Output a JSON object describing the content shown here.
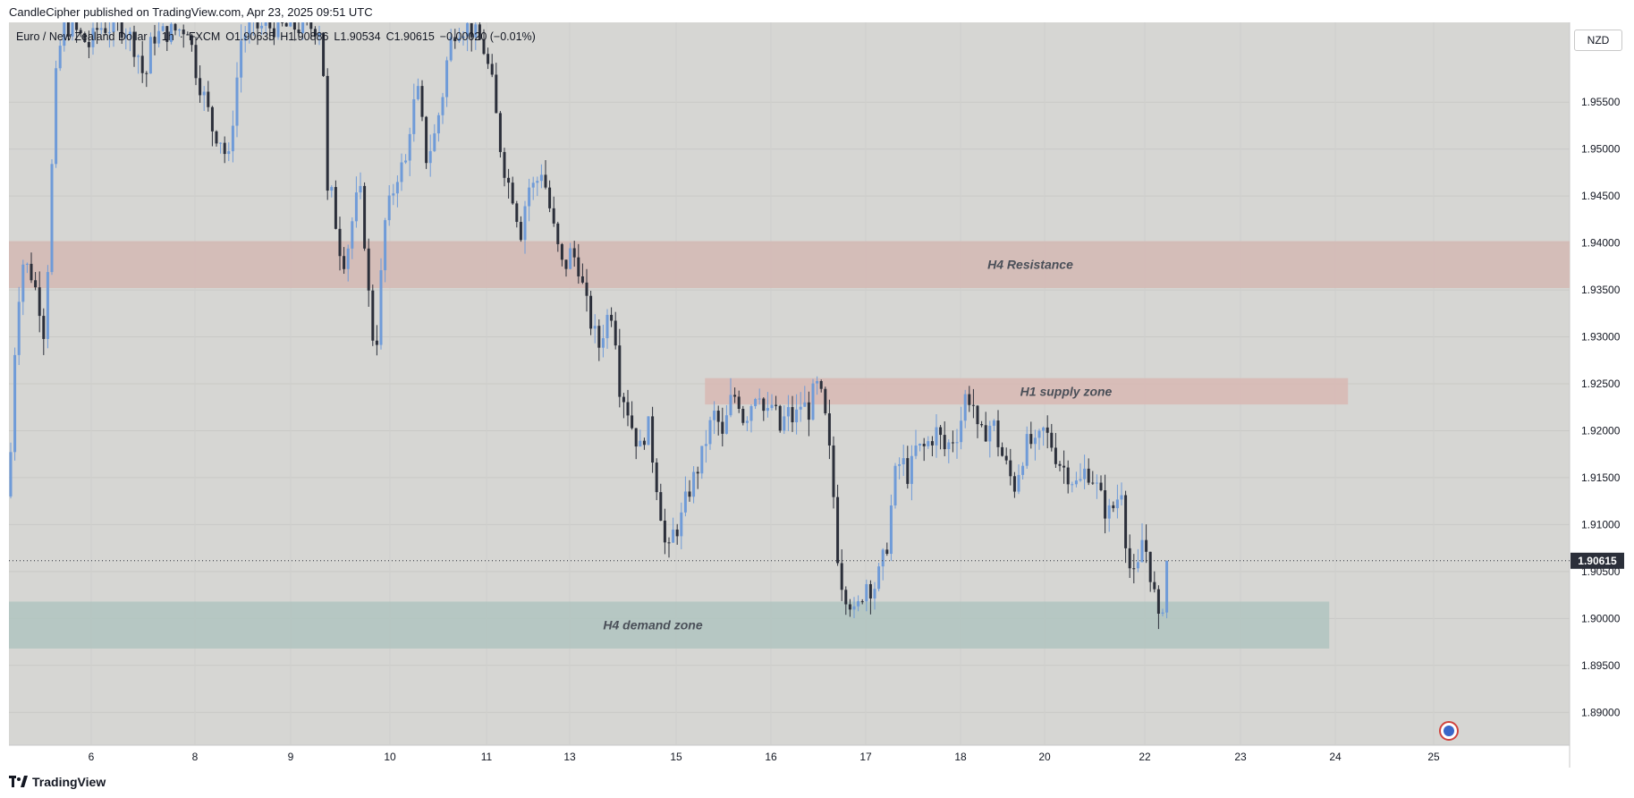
{
  "caption": "CandleCipher published on TradingView.com, Apr 23, 2025 09:51 UTC",
  "legend": {
    "symbol": "Euro / New Zealand Dollar",
    "sep": "·",
    "interval": "1h",
    "broker": "FXCM",
    "open": "O1.90635",
    "high": "H1.90886",
    "low": "L1.90534",
    "close": "C1.90615",
    "change": "−0.00020 (−0.01%)"
  },
  "currency_badge": "NZD",
  "footer": {
    "brand": "TradingView"
  },
  "colors": {
    "background": "#d6d6d3",
    "up": "#6f9bd8",
    "down": "#2b2f3a",
    "resistance": "#d4b9b3",
    "supply": "#d8b9b3",
    "demand": "#b0c4bf"
  },
  "chart_data": {
    "type": "candlestick",
    "symbol": "EURNZD",
    "interval": "1h",
    "ylim": [
      1.8865,
      1.9635
    ],
    "y_ticks": [
      "1.95500",
      "1.95000",
      "1.94500",
      "1.94000",
      "1.93500",
      "1.93000",
      "1.92500",
      "1.92000",
      "1.91500",
      "1.91000",
      "1.90500",
      "1.90000",
      "1.89500",
      "1.89000"
    ],
    "x_ticks": [
      "6",
      "8",
      "9",
      "10",
      "11",
      "13",
      "15",
      "16",
      "17",
      "18",
      "20",
      "22",
      "23",
      "24",
      "25"
    ],
    "last_price": "1.90615",
    "current_price": 1.90615,
    "zones": [
      {
        "label": "H4 Resistance",
        "top": 1.9402,
        "bottom": 1.9352,
        "x_start": 0.0,
        "x_end": 1.0,
        "color": "#d4b9b3"
      },
      {
        "label": "H1 supply zone",
        "top": 1.9256,
        "bottom": 1.9228,
        "x_start": 0.446,
        "x_end": 0.858,
        "color": "#d8b9b3"
      },
      {
        "label": "H4 demand zone",
        "top": 1.9018,
        "bottom": 1.8968,
        "x_start": 0.0,
        "x_end": 0.846,
        "color": "#b0c4bf"
      }
    ],
    "path_points": [
      [
        0,
        1.913
      ],
      [
        8,
        1.932
      ],
      [
        15,
        1.938
      ],
      [
        24,
        1.937
      ],
      [
        33,
        1.934
      ],
      [
        40,
        1.93
      ],
      [
        48,
        1.948
      ],
      [
        52,
        1.957
      ],
      [
        60,
        1.963
      ],
      [
        70,
        1.963
      ],
      [
        80,
        1.962
      ],
      [
        90,
        1.961
      ],
      [
        100,
        1.963
      ],
      [
        115,
        1.963
      ],
      [
        130,
        1.963
      ],
      [
        145,
        1.96
      ],
      [
        152,
        1.957
      ],
      [
        160,
        1.962
      ],
      [
        200,
        1.963
      ],
      [
        210,
        1.958
      ],
      [
        220,
        1.955
      ],
      [
        228,
        1.952
      ],
      [
        238,
        1.951
      ],
      [
        245,
        1.948
      ],
      [
        252,
        1.955
      ],
      [
        260,
        1.962
      ],
      [
        270,
        1.963
      ],
      [
        300,
        1.963
      ],
      [
        330,
        1.963
      ],
      [
        350,
        1.963
      ],
      [
        356,
        1.945
      ],
      [
        362,
        1.945
      ],
      [
        368,
        1.94
      ],
      [
        376,
        1.938
      ],
      [
        385,
        1.943
      ],
      [
        392,
        1.946
      ],
      [
        398,
        1.94
      ],
      [
        404,
        1.932
      ],
      [
        410,
        1.928
      ],
      [
        415,
        1.935
      ],
      [
        420,
        1.942
      ],
      [
        428,
        1.945
      ],
      [
        436,
        1.948
      ],
      [
        443,
        1.948
      ],
      [
        450,
        1.954
      ],
      [
        458,
        1.956
      ],
      [
        466,
        1.949
      ],
      [
        475,
        1.951
      ],
      [
        485,
        1.956
      ],
      [
        492,
        1.961
      ],
      [
        500,
        1.963
      ],
      [
        515,
        1.963
      ],
      [
        530,
        1.961
      ],
      [
        540,
        1.957
      ],
      [
        548,
        1.951
      ],
      [
        556,
        1.947
      ],
      [
        564,
        1.945
      ],
      [
        572,
        1.941
      ],
      [
        580,
        1.946
      ],
      [
        588,
        1.946
      ],
      [
        596,
        1.948
      ],
      [
        604,
        1.944
      ],
      [
        612,
        1.94
      ],
      [
        620,
        1.937
      ],
      [
        628,
        1.939
      ],
      [
        636,
        1.938
      ],
      [
        644,
        1.934
      ],
      [
        652,
        1.931
      ],
      [
        660,
        1.929
      ],
      [
        668,
        1.932
      ],
      [
        676,
        1.933
      ],
      [
        682,
        1.925
      ],
      [
        690,
        1.923
      ],
      [
        698,
        1.92
      ],
      [
        706,
        1.918
      ],
      [
        714,
        1.921
      ],
      [
        720,
        1.917
      ],
      [
        728,
        1.912
      ],
      [
        736,
        1.906
      ],
      [
        742,
        1.909
      ],
      [
        750,
        1.91
      ],
      [
        758,
        1.913
      ],
      [
        766,
        1.915
      ],
      [
        774,
        1.917
      ],
      [
        782,
        1.92
      ],
      [
        790,
        1.922
      ],
      [
        798,
        1.919
      ],
      [
        806,
        1.923
      ],
      [
        814,
        1.924
      ],
      [
        822,
        1.921
      ],
      [
        830,
        1.923
      ],
      [
        838,
        1.925
      ],
      [
        846,
        1.921
      ],
      [
        854,
        1.923
      ],
      [
        862,
        1.92
      ],
      [
        870,
        1.922
      ],
      [
        878,
        1.921
      ],
      [
        886,
        1.923
      ],
      [
        894,
        1.922
      ],
      [
        902,
        1.925
      ],
      [
        910,
        1.923
      ],
      [
        916,
        1.919
      ],
      [
        922,
        1.913
      ],
      [
        928,
        1.905
      ],
      [
        934,
        1.903
      ],
      [
        940,
        1.902
      ],
      [
        946,
        1.9
      ],
      [
        952,
        1.902
      ],
      [
        958,
        1.904
      ],
      [
        966,
        1.903
      ],
      [
        974,
        1.905
      ],
      [
        982,
        1.908
      ],
      [
        990,
        1.915
      ],
      [
        998,
        1.917
      ],
      [
        1006,
        1.915
      ],
      [
        1014,
        1.918
      ],
      [
        1022,
        1.918
      ],
      [
        1030,
        1.919
      ],
      [
        1038,
        1.92
      ],
      [
        1046,
        1.918
      ],
      [
        1054,
        1.919
      ],
      [
        1062,
        1.92
      ],
      [
        1070,
        1.924
      ],
      [
        1078,
        1.923
      ],
      [
        1084,
        1.919
      ],
      [
        1092,
        1.92
      ],
      [
        1100,
        1.921
      ],
      [
        1108,
        1.918
      ],
      [
        1116,
        1.916
      ],
      [
        1124,
        1.914
      ],
      [
        1132,
        1.917
      ],
      [
        1140,
        1.919
      ],
      [
        1148,
        1.918
      ],
      [
        1156,
        1.92
      ],
      [
        1164,
        1.919
      ],
      [
        1172,
        1.917
      ],
      [
        1180,
        1.916
      ],
      [
        1188,
        1.915
      ],
      [
        1196,
        1.914
      ],
      [
        1204,
        1.916
      ],
      [
        1212,
        1.915
      ],
      [
        1220,
        1.913
      ],
      [
        1228,
        1.911
      ],
      [
        1236,
        1.912
      ],
      [
        1244,
        1.914
      ],
      [
        1250,
        1.907
      ],
      [
        1256,
        1.904
      ],
      [
        1262,
        1.905
      ],
      [
        1268,
        1.909
      ],
      [
        1274,
        1.906
      ],
      [
        1280,
        1.903
      ],
      [
        1286,
        1.899
      ],
      [
        1292,
        1.903
      ],
      [
        1298,
        1.906
      ]
    ]
  }
}
